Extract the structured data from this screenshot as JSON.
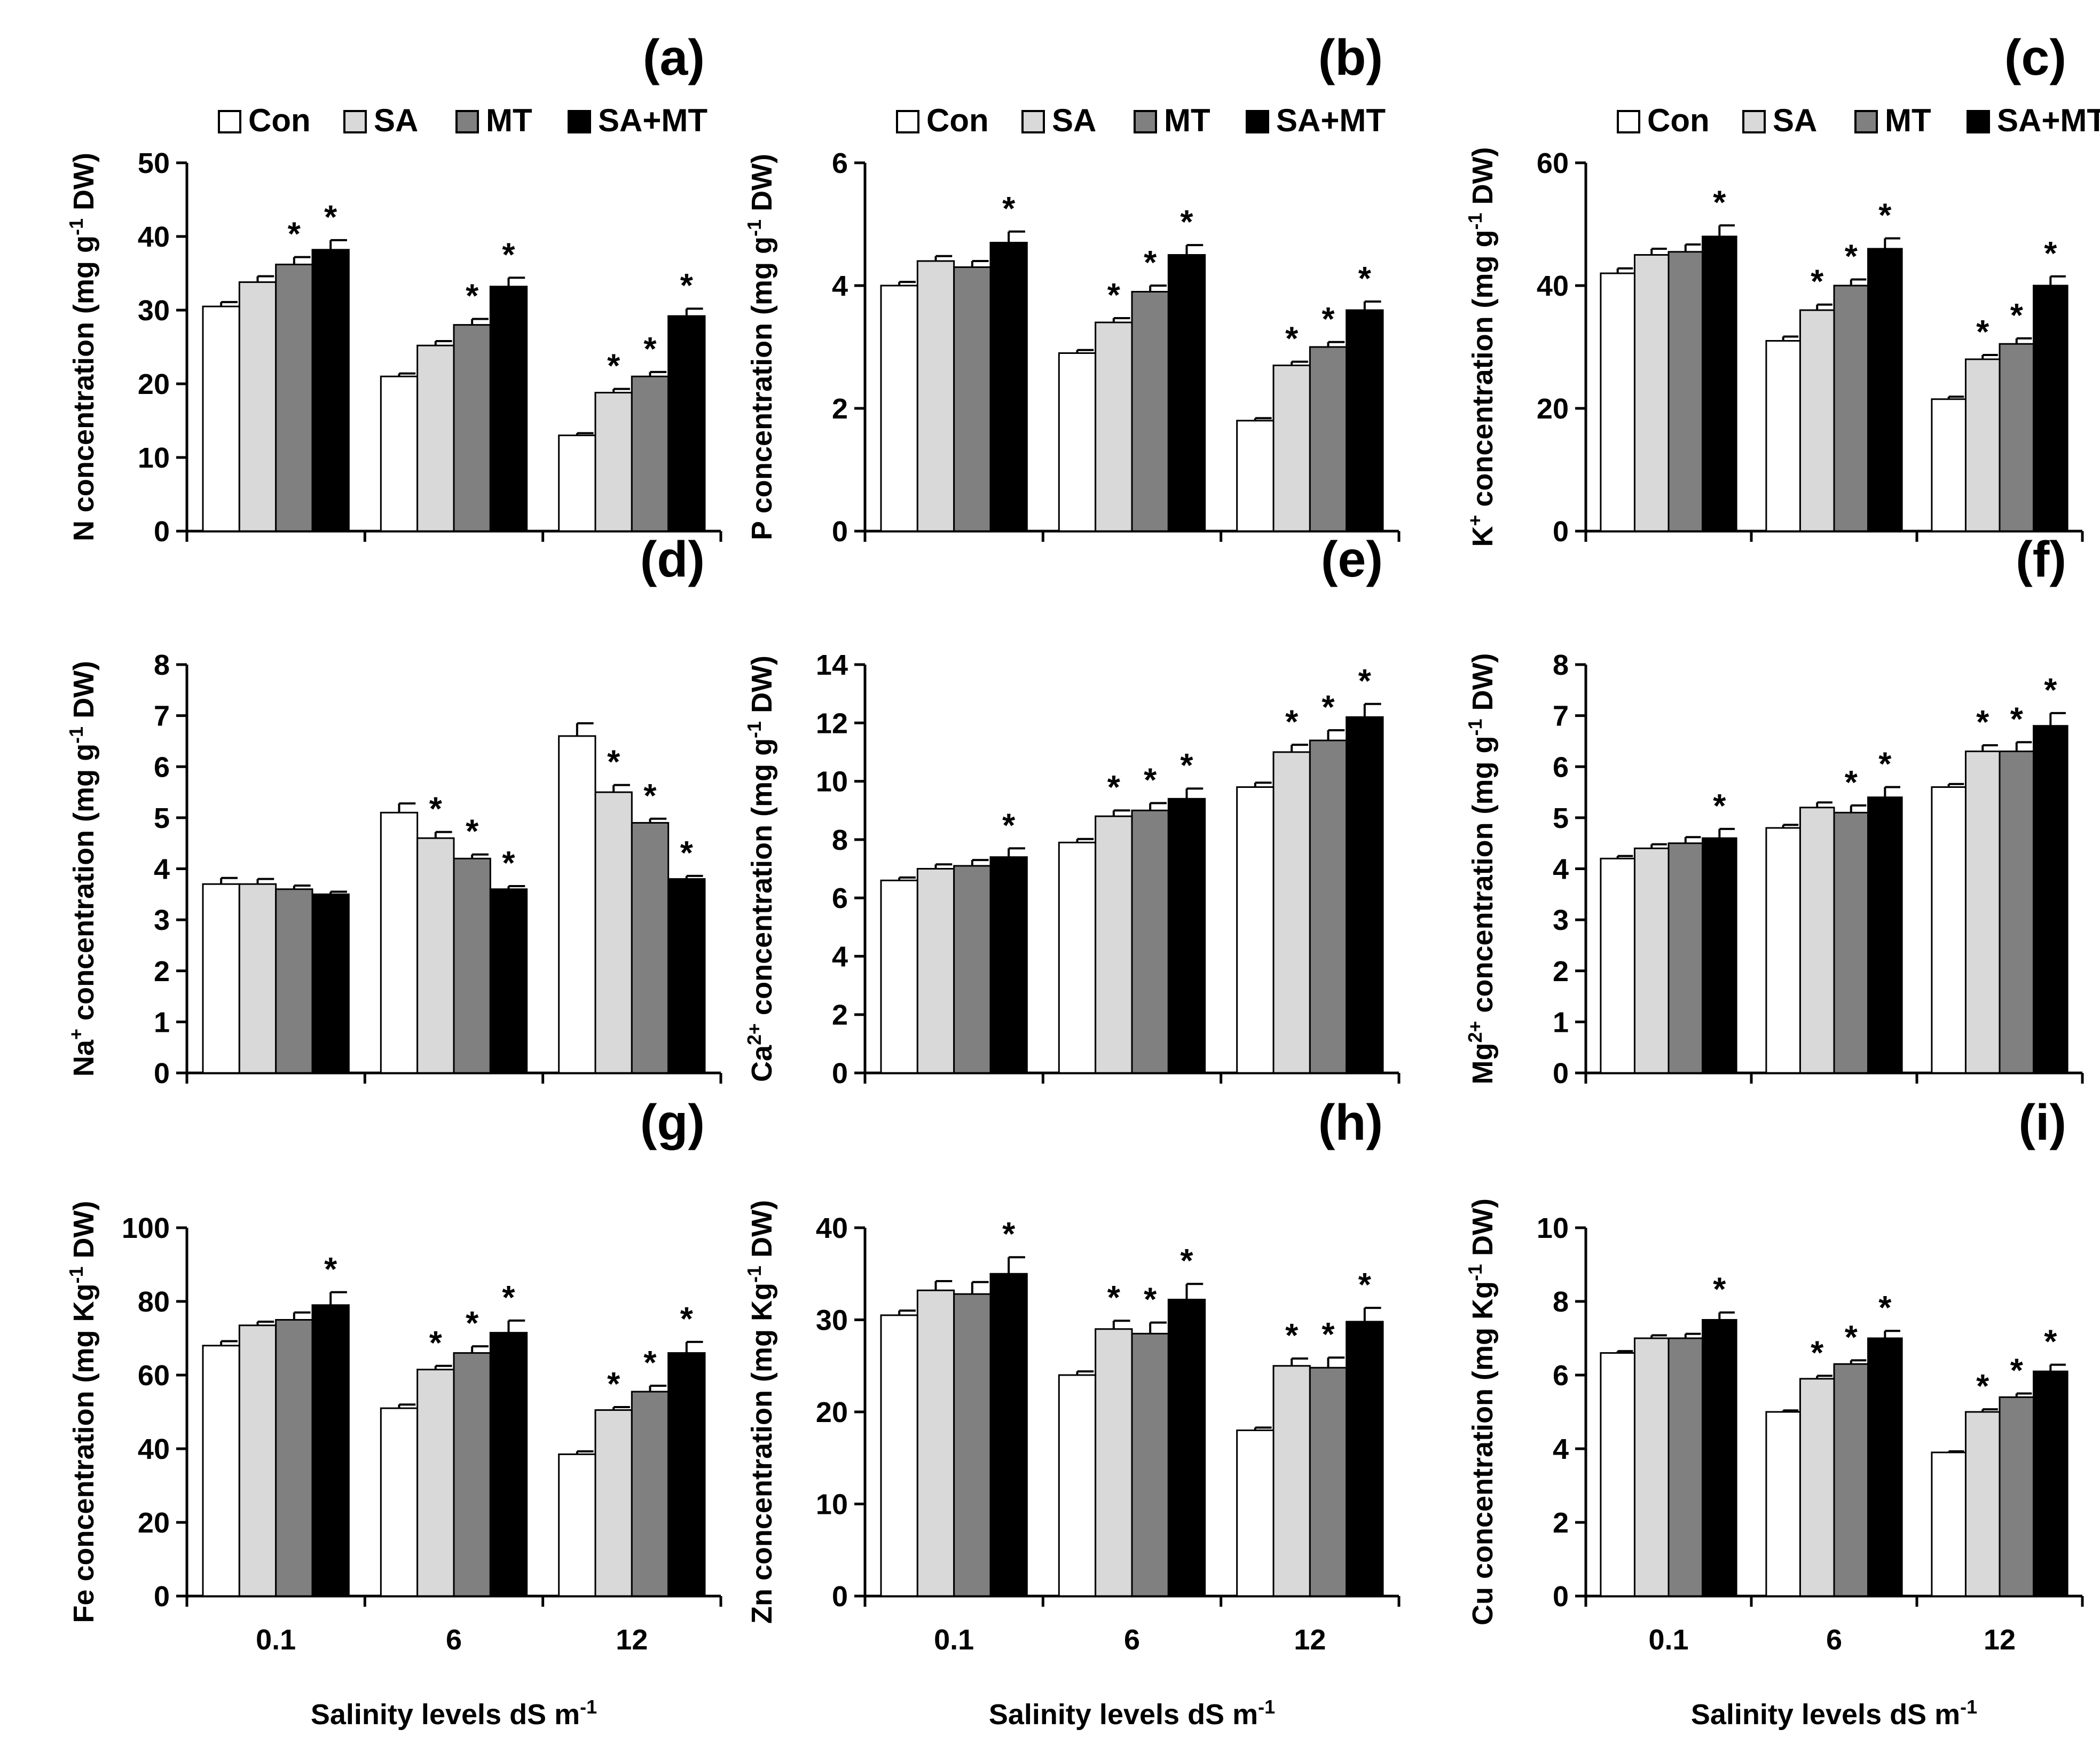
{
  "figure": {
    "legend_items": [
      "Con",
      "SA",
      "MT",
      "SA+MT"
    ],
    "x_axis_title": "Salinity levels dS m",
    "x_axis_title_sup": "-1"
  },
  "colors": {
    "Con": "#ffffff",
    "SA": "#d9d9d9",
    "MT": "#808080",
    "SA+MT": "#000000",
    "stroke": "#000000"
  },
  "chart_data": [
    {
      "type": "bar",
      "panel": "(a)",
      "ylabel_pre": "N concentration (mg g",
      "ylabel_sup": "-1",
      "ylabel_post": " DW)",
      "ylim": [
        0,
        50
      ],
      "yticks": [
        0,
        10,
        20,
        30,
        40,
        50
      ],
      "categories": [
        "0.1",
        "6",
        "12"
      ],
      "series": [
        {
          "name": "Con",
          "values": [
            30.5,
            21,
            13
          ],
          "errors": [
            0.6,
            0.4,
            0.3
          ],
          "sig": [
            false,
            false,
            false
          ]
        },
        {
          "name": "SA",
          "values": [
            33.8,
            25.2,
            18.8
          ],
          "errors": [
            0.8,
            0.6,
            0.5
          ],
          "sig": [
            false,
            false,
            true
          ]
        },
        {
          "name": "MT",
          "values": [
            36.2,
            28,
            21
          ],
          "errors": [
            1.0,
            0.8,
            0.6
          ],
          "sig": [
            true,
            true,
            true
          ]
        },
        {
          "name": "SA+MT",
          "values": [
            38.2,
            33.2,
            29.2
          ],
          "errors": [
            1.3,
            1.2,
            1.0
          ],
          "sig": [
            true,
            true,
            true
          ]
        }
      ]
    },
    {
      "type": "bar",
      "panel": "(b)",
      "ylabel_pre": "P concentration (mg g",
      "ylabel_sup": "-1",
      "ylabel_post": " DW)",
      "ylim": [
        0,
        6
      ],
      "yticks": [
        0,
        2,
        4,
        6
      ],
      "categories": [
        "0.1",
        "6",
        "12"
      ],
      "series": [
        {
          "name": "Con",
          "values": [
            4.0,
            2.9,
            1.8
          ],
          "errors": [
            0.06,
            0.05,
            0.04
          ],
          "sig": [
            false,
            false,
            false
          ]
        },
        {
          "name": "SA",
          "values": [
            4.4,
            3.4,
            2.7
          ],
          "errors": [
            0.08,
            0.07,
            0.06
          ],
          "sig": [
            false,
            true,
            true
          ]
        },
        {
          "name": "MT",
          "values": [
            4.3,
            3.9,
            3.0
          ],
          "errors": [
            0.1,
            0.1,
            0.08
          ],
          "sig": [
            false,
            true,
            true
          ]
        },
        {
          "name": "SA+MT",
          "values": [
            4.7,
            4.5,
            3.6
          ],
          "errors": [
            0.18,
            0.16,
            0.14
          ],
          "sig": [
            true,
            true,
            true
          ]
        }
      ]
    },
    {
      "type": "bar",
      "panel": "(c)",
      "ylabel_pre": "K",
      "ylabel_presup": "+",
      "ylabel_mid": " concentration (mg g",
      "ylabel_sup": "-1",
      "ylabel_post": " DW)",
      "ylim": [
        0,
        60
      ],
      "yticks": [
        0,
        20,
        40,
        60
      ],
      "categories": [
        "0.1",
        "6",
        "12"
      ],
      "series": [
        {
          "name": "Con",
          "values": [
            42,
            31,
            21.5
          ],
          "errors": [
            0.8,
            0.7,
            0.4
          ],
          "sig": [
            false,
            false,
            false
          ]
        },
        {
          "name": "SA",
          "values": [
            45,
            36,
            28
          ],
          "errors": [
            1.0,
            0.9,
            0.7
          ],
          "sig": [
            false,
            true,
            true
          ]
        },
        {
          "name": "MT",
          "values": [
            45.5,
            40,
            30.5
          ],
          "errors": [
            1.2,
            1.0,
            0.9
          ],
          "sig": [
            false,
            true,
            true
          ]
        },
        {
          "name": "SA+MT",
          "values": [
            48,
            46,
            40
          ],
          "errors": [
            1.8,
            1.7,
            1.5
          ],
          "sig": [
            true,
            true,
            true
          ]
        }
      ]
    },
    {
      "type": "bar",
      "panel": "(d)",
      "ylabel_pre": "Na",
      "ylabel_presup": "+",
      "ylabel_mid": " concentration (mg g",
      "ylabel_sup": "-1",
      "ylabel_post": " DW)",
      "ylim": [
        0,
        8
      ],
      "yticks": [
        0,
        1,
        2,
        3,
        4,
        5,
        6,
        7,
        8
      ],
      "categories": [
        "0.1",
        "6",
        "12"
      ],
      "series": [
        {
          "name": "Con",
          "values": [
            3.7,
            5.1,
            6.6
          ],
          "errors": [
            0.12,
            0.18,
            0.25
          ],
          "sig": [
            false,
            false,
            false
          ]
        },
        {
          "name": "SA",
          "values": [
            3.7,
            4.6,
            5.5
          ],
          "errors": [
            0.1,
            0.12,
            0.14
          ],
          "sig": [
            false,
            true,
            true
          ]
        },
        {
          "name": "MT",
          "values": [
            3.6,
            4.2,
            4.9
          ],
          "errors": [
            0.07,
            0.08,
            0.08
          ],
          "sig": [
            false,
            true,
            true
          ]
        },
        {
          "name": "SA+MT",
          "values": [
            3.5,
            3.6,
            3.8
          ],
          "errors": [
            0.05,
            0.06,
            0.06
          ],
          "sig": [
            false,
            true,
            true
          ]
        }
      ]
    },
    {
      "type": "bar",
      "panel": "(e)",
      "ylabel_pre": "Ca",
      "ylabel_presup": "2+",
      "ylabel_mid": " concentration (mg g",
      "ylabel_sup": "-1",
      "ylabel_post": " DW)",
      "ylim": [
        0,
        14
      ],
      "yticks": [
        0,
        2,
        4,
        6,
        8,
        10,
        12,
        14
      ],
      "categories": [
        "0.1",
        "6",
        "12"
      ],
      "series": [
        {
          "name": "Con",
          "values": [
            6.6,
            7.9,
            9.8
          ],
          "errors": [
            0.1,
            0.12,
            0.15
          ],
          "sig": [
            false,
            false,
            false
          ]
        },
        {
          "name": "SA",
          "values": [
            7.0,
            8.8,
            11.0
          ],
          "errors": [
            0.15,
            0.2,
            0.25
          ],
          "sig": [
            false,
            true,
            true
          ]
        },
        {
          "name": "MT",
          "values": [
            7.1,
            9.0,
            11.4
          ],
          "errors": [
            0.2,
            0.25,
            0.35
          ],
          "sig": [
            false,
            true,
            true
          ]
        },
        {
          "name": "SA+MT",
          "values": [
            7.4,
            9.4,
            12.2
          ],
          "errors": [
            0.3,
            0.35,
            0.45
          ],
          "sig": [
            true,
            true,
            true
          ]
        }
      ]
    },
    {
      "type": "bar",
      "panel": "(f)",
      "ylabel_pre": "Mg",
      "ylabel_presup": "2+",
      "ylabel_mid": " concentration (mg g",
      "ylabel_sup": "-1",
      "ylabel_post": " DW)",
      "ylim": [
        0,
        8
      ],
      "yticks": [
        0,
        1,
        2,
        3,
        4,
        5,
        6,
        7,
        8
      ],
      "categories": [
        "0.1",
        "6",
        "12"
      ],
      "series": [
        {
          "name": "Con",
          "values": [
            4.2,
            4.8,
            5.6
          ],
          "errors": [
            0.05,
            0.06,
            0.06
          ],
          "sig": [
            false,
            false,
            false
          ]
        },
        {
          "name": "SA",
          "values": [
            4.4,
            5.2,
            6.3
          ],
          "errors": [
            0.08,
            0.1,
            0.12
          ],
          "sig": [
            false,
            false,
            true
          ]
        },
        {
          "name": "MT",
          "values": [
            4.5,
            5.1,
            6.3
          ],
          "errors": [
            0.12,
            0.14,
            0.18
          ],
          "sig": [
            false,
            true,
            true
          ]
        },
        {
          "name": "SA+MT",
          "values": [
            4.6,
            5.4,
            6.8
          ],
          "errors": [
            0.18,
            0.2,
            0.25
          ],
          "sig": [
            true,
            true,
            true
          ]
        }
      ]
    },
    {
      "type": "bar",
      "panel": "(g)",
      "ylabel_pre": "Fe concentration (mg Kg",
      "ylabel_sup": "-1",
      "ylabel_post": " DW)",
      "ylim": [
        0,
        100
      ],
      "yticks": [
        0,
        20,
        40,
        60,
        80,
        100
      ],
      "categories": [
        "0.1",
        "6",
        "12"
      ],
      "series": [
        {
          "name": "Con",
          "values": [
            68,
            51,
            38.5
          ],
          "errors": [
            1.2,
            1.0,
            0.8
          ],
          "sig": [
            false,
            false,
            false
          ]
        },
        {
          "name": "SA",
          "values": [
            73.5,
            61.5,
            50.5
          ],
          "errors": [
            1.0,
            1.0,
            0.8
          ],
          "sig": [
            false,
            true,
            true
          ]
        },
        {
          "name": "MT",
          "values": [
            75,
            66,
            55.5
          ],
          "errors": [
            2.0,
            1.8,
            1.6
          ],
          "sig": [
            false,
            true,
            true
          ]
        },
        {
          "name": "SA+MT",
          "values": [
            79,
            71.5,
            66
          ],
          "errors": [
            3.5,
            3.3,
            3.0
          ],
          "sig": [
            true,
            true,
            true
          ]
        }
      ]
    },
    {
      "type": "bar",
      "panel": "(h)",
      "ylabel_pre": "Zn concentration (mg Kg",
      "ylabel_sup": "-1",
      "ylabel_post": " DW)",
      "ylim": [
        0,
        40
      ],
      "yticks": [
        0,
        10,
        20,
        30,
        40
      ],
      "categories": [
        "0.1",
        "6",
        "12"
      ],
      "series": [
        {
          "name": "Con",
          "values": [
            30.5,
            24,
            18
          ],
          "errors": [
            0.5,
            0.4,
            0.3
          ],
          "sig": [
            false,
            false,
            false
          ]
        },
        {
          "name": "SA",
          "values": [
            33.2,
            29,
            25
          ],
          "errors": [
            1.0,
            0.9,
            0.8
          ],
          "sig": [
            false,
            true,
            true
          ]
        },
        {
          "name": "MT",
          "values": [
            32.8,
            28.5,
            24.8
          ],
          "errors": [
            1.3,
            1.2,
            1.1
          ],
          "sig": [
            false,
            true,
            true
          ]
        },
        {
          "name": "SA+MT",
          "values": [
            35,
            32.2,
            29.8
          ],
          "errors": [
            1.8,
            1.7,
            1.5
          ],
          "sig": [
            true,
            true,
            true
          ]
        }
      ]
    },
    {
      "type": "bar",
      "panel": "(i)",
      "ylabel_pre": "Cu concentration (mg Kg",
      "ylabel_sup": "-1",
      "ylabel_post": " DW)",
      "ylim": [
        0,
        10
      ],
      "yticks": [
        0,
        2,
        4,
        6,
        8,
        10
      ],
      "categories": [
        "0.1",
        "6",
        "12"
      ],
      "series": [
        {
          "name": "Con",
          "values": [
            6.6,
            5.0,
            3.9
          ],
          "errors": [
            0.05,
            0.04,
            0.03
          ],
          "sig": [
            false,
            false,
            false
          ]
        },
        {
          "name": "SA",
          "values": [
            7.0,
            5.9,
            5.0
          ],
          "errors": [
            0.08,
            0.08,
            0.07
          ],
          "sig": [
            false,
            true,
            true
          ]
        },
        {
          "name": "MT",
          "values": [
            7.0,
            6.3,
            5.4
          ],
          "errors": [
            0.12,
            0.1,
            0.1
          ],
          "sig": [
            false,
            true,
            true
          ]
        },
        {
          "name": "SA+MT",
          "values": [
            7.5,
            7.0,
            6.1
          ],
          "errors": [
            0.2,
            0.2,
            0.18
          ],
          "sig": [
            true,
            true,
            true
          ]
        }
      ]
    }
  ]
}
